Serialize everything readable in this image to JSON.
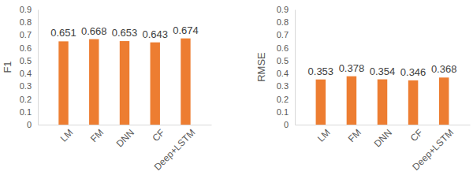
{
  "chart_data": [
    {
      "type": "bar",
      "ylabel": "F1",
      "categories": [
        "LM",
        "FM",
        "DNN",
        "CF",
        "Deep+LSTM"
      ],
      "values": [
        0.651,
        0.668,
        0.653,
        0.643,
        0.674
      ],
      "color": "#ed7d31",
      "ylim": [
        0,
        0.9
      ],
      "yticks": [
        0,
        0.1,
        0.2,
        0.3,
        0.4,
        0.5,
        0.6,
        0.7,
        0.8,
        0.9
      ],
      "grid": false,
      "data_labels": true
    },
    {
      "type": "bar",
      "ylabel": "RMSE",
      "categories": [
        "LM",
        "FM",
        "DNN",
        "CF",
        "Deep+LSTM"
      ],
      "values": [
        0.353,
        0.378,
        0.354,
        0.346,
        0.368
      ],
      "color": "#ed7d31",
      "ylim": [
        0,
        0.9
      ],
      "yticks": [
        0,
        0.1,
        0.2,
        0.3,
        0.4,
        0.5,
        0.6,
        0.7,
        0.8,
        0.9
      ],
      "grid": false,
      "data_labels": true
    }
  ]
}
